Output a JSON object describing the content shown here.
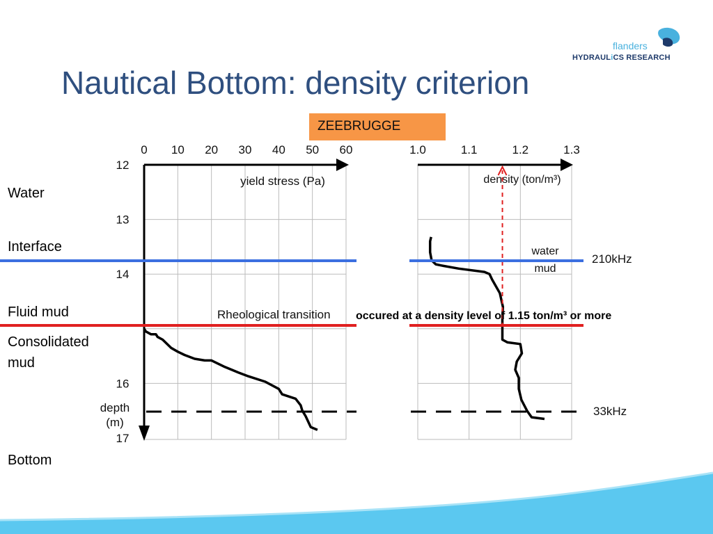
{
  "slide": {
    "title": "Nautical Bottom: density criterion",
    "logo": {
      "word": "flanders",
      "sub_before": "HYDRAUL",
      "sub_mark": "i",
      "sub_after": "CS RESEARCH"
    },
    "badge": "ZEEBRUGGE",
    "layers": [
      "Water",
      "Interface",
      "Fluid mud",
      "Consolidated mud",
      "Bottom"
    ],
    "colors": {
      "title": "#2f4f7f",
      "badge": "#f79646",
      "interface_line": "#3b6fe0",
      "transition_line": "#e02020",
      "wave": "#5bc8f0"
    }
  },
  "chart_data": [
    {
      "type": "line",
      "xlabel": "yield stress (Pa)",
      "ylabel": "depth\n(m)",
      "x_ticks": [
        "0",
        "10",
        "20",
        "30",
        "40",
        "50",
        "60"
      ],
      "y_ticks": [
        "12",
        "13",
        "14",
        "16",
        "17"
      ],
      "xlim": [
        0,
        60
      ],
      "ylim": [
        12,
        17
      ],
      "y_inverted": true,
      "grid": true,
      "series": [
        {
          "x": [
            0,
            0.5,
            2,
            3.5,
            4,
            5.5,
            8,
            10,
            12,
            15,
            18,
            20,
            24,
            26,
            28,
            31,
            36,
            40,
            41,
            45,
            46.5,
            47,
            48,
            49.5,
            51.5
          ],
          "y": [
            15.0,
            15.05,
            15.1,
            15.1,
            15.15,
            15.2,
            15.35,
            15.42,
            15.48,
            15.55,
            15.58,
            15.58,
            15.7,
            15.75,
            15.8,
            15.87,
            15.97,
            16.1,
            16.2,
            16.28,
            16.4,
            16.5,
            16.6,
            16.8,
            16.85
          ]
        }
      ]
    },
    {
      "type": "line",
      "xlabel": "density (ton/m³)",
      "x_ticks": [
        "1.0",
        "1.1",
        "1.2",
        "1.3"
      ],
      "xlim": [
        1.0,
        1.3
      ],
      "ylim": [
        12,
        17
      ],
      "y_inverted": true,
      "grid": true,
      "series": [
        {
          "x": [
            1.026,
            1.024,
            1.024,
            1.027,
            1.035,
            1.05,
            1.08,
            1.13,
            1.14,
            1.145,
            1.16,
            1.166,
            1.165,
            1.165,
            1.175,
            1.2,
            1.203,
            1.193,
            1.19,
            1.197,
            1.197,
            1.202,
            1.213,
            1.222,
            1.247
          ],
          "y": [
            13.32,
            13.4,
            13.6,
            13.75,
            13.82,
            13.85,
            13.9,
            13.96,
            14.0,
            14.1,
            14.35,
            14.6,
            14.8,
            15.2,
            15.25,
            15.28,
            15.45,
            15.6,
            15.75,
            15.9,
            16.1,
            16.3,
            16.5,
            16.62,
            16.65
          ]
        }
      ],
      "annotations": [
        "water",
        "mud"
      ],
      "reference_x": 1.165
    }
  ],
  "overlay": {
    "interface_label": "210kHz",
    "lower_label": "33kHz",
    "transition_label": "Rheological transition",
    "transition_note": "occured at a density level of 1.15 ton/m³ or more",
    "water_label": "water",
    "mud_label": "mud"
  }
}
